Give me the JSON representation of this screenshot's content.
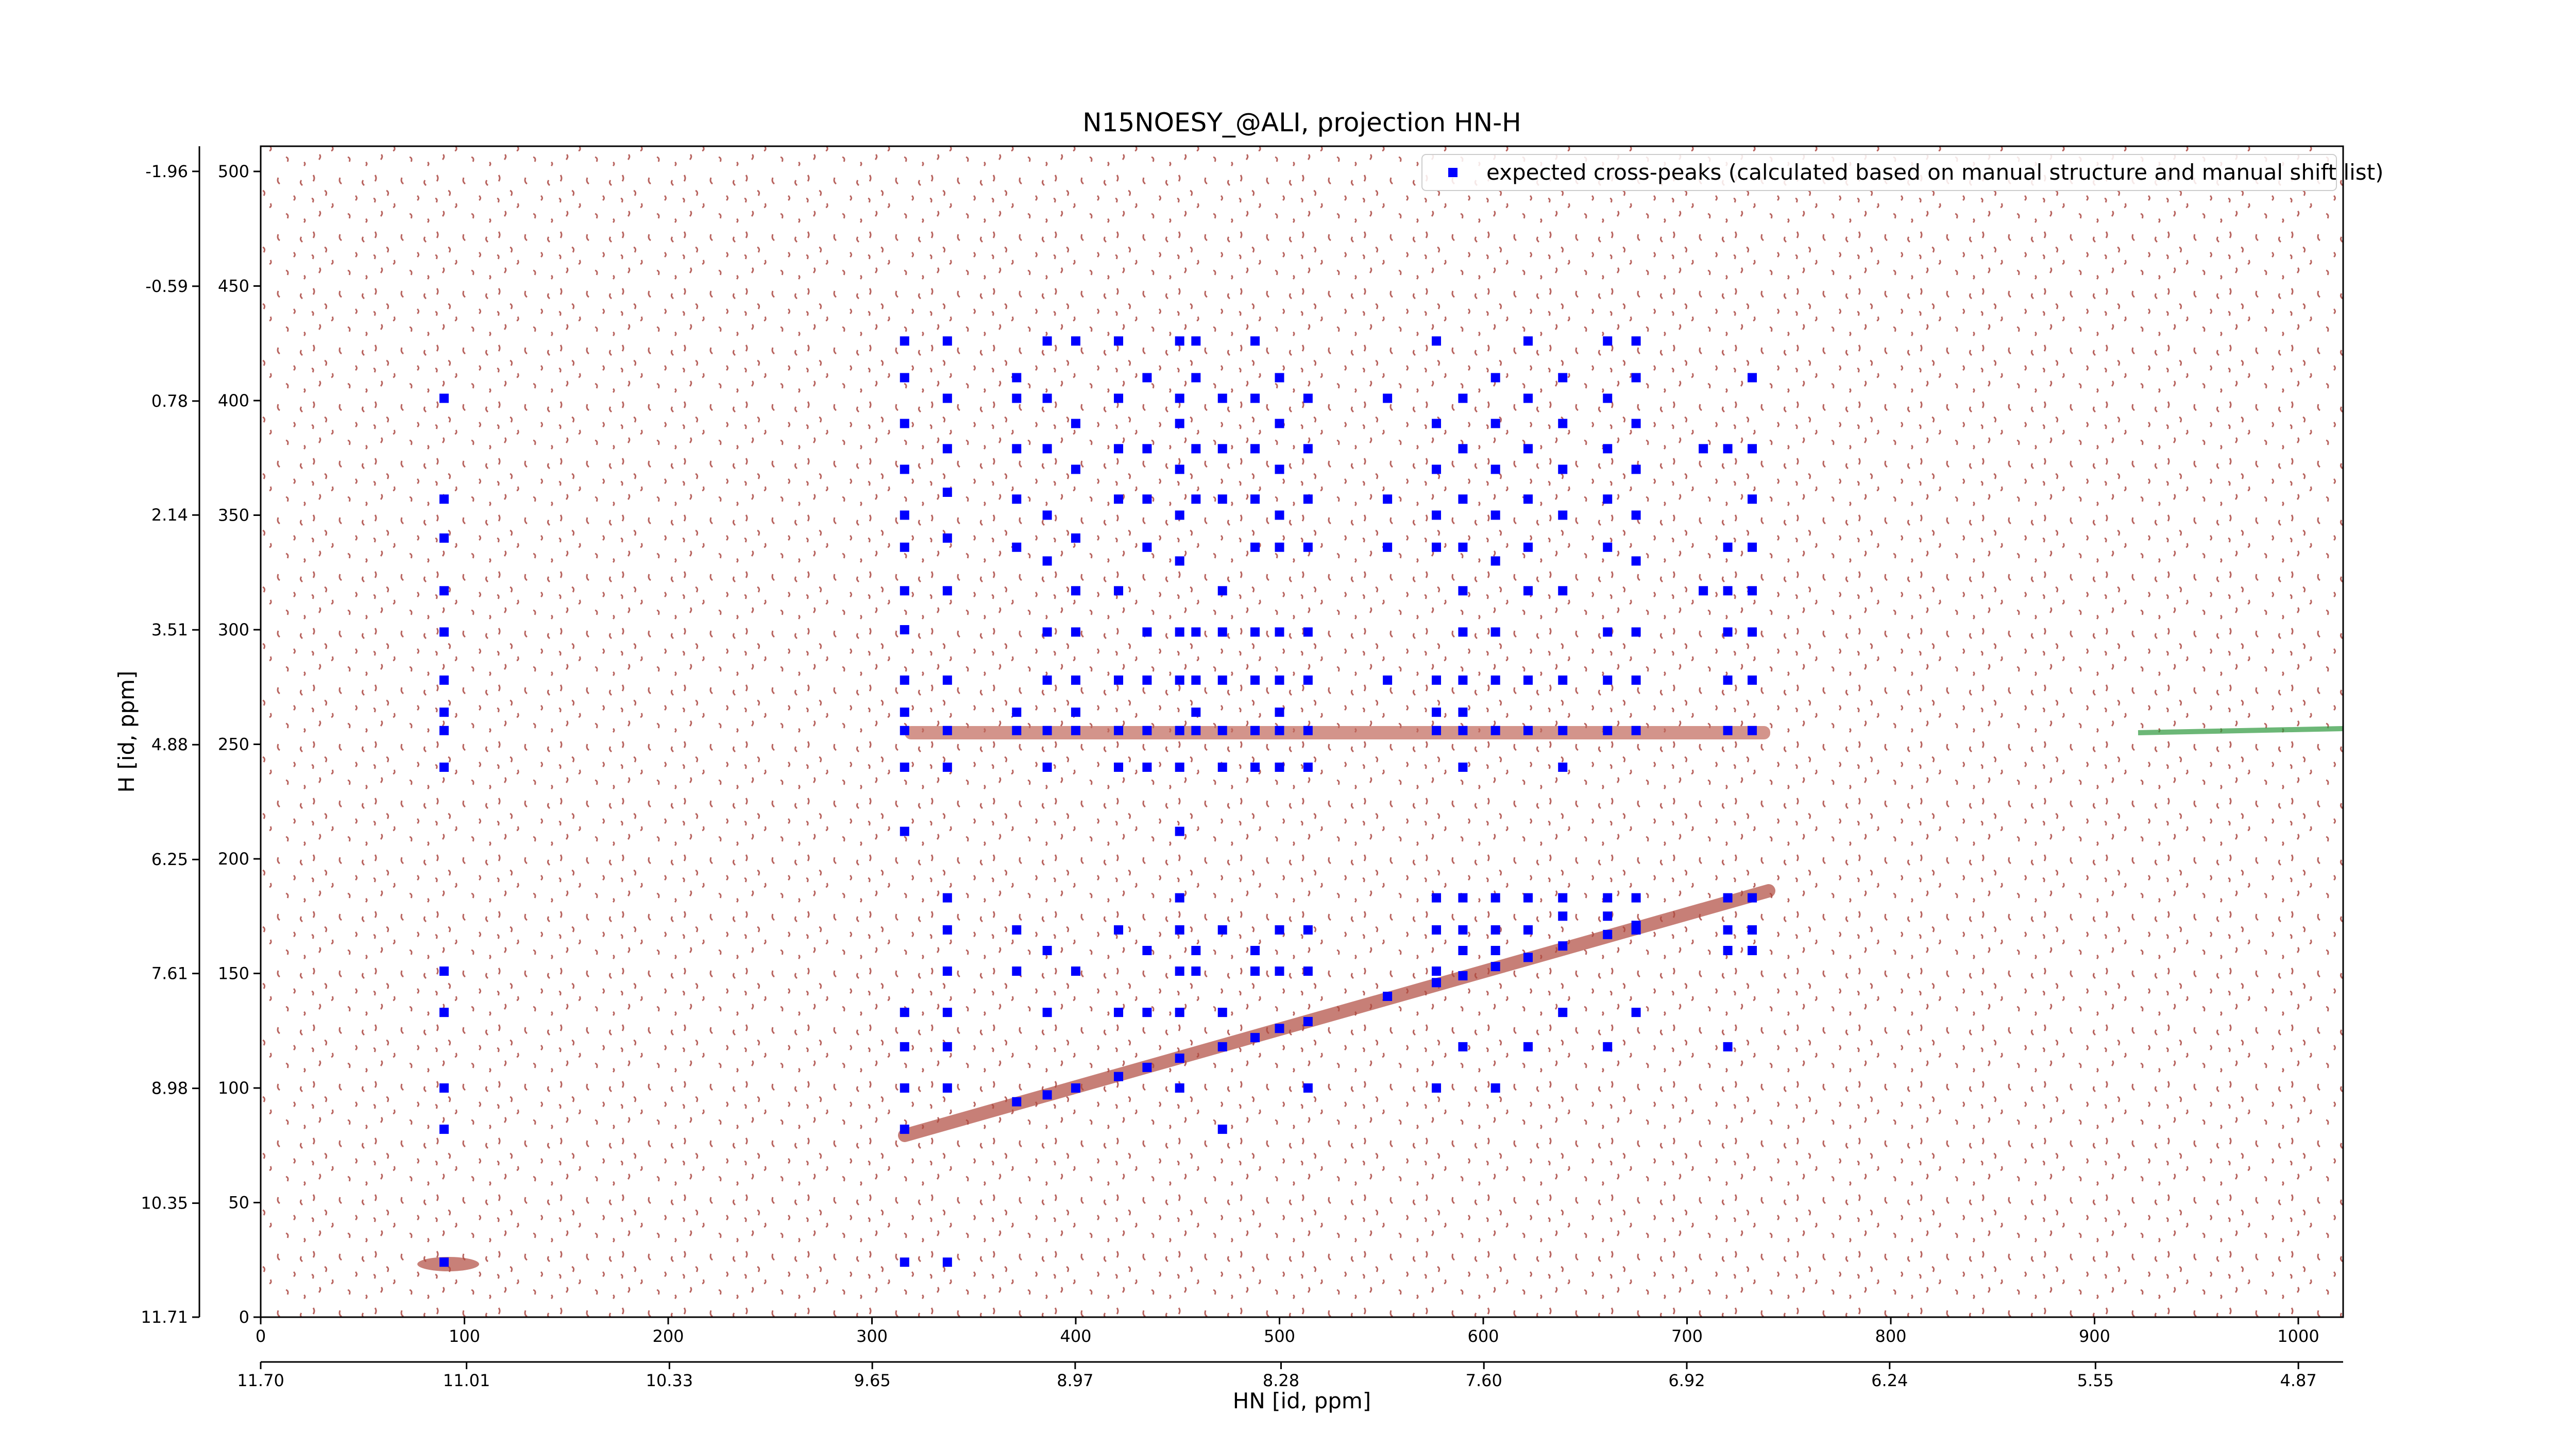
{
  "chart_data": {
    "type": "scatter",
    "title": "N15NOESY_@ALI, projection HN-H",
    "x_label": "HN [id, ppm]",
    "y_label": "H [id, ppm]",
    "xlim": [
      0,
      1022
    ],
    "ylim": [
      0,
      511
    ],
    "xticks": [
      0,
      100,
      200,
      300,
      400,
      500,
      600,
      700,
      800,
      900,
      1000
    ],
    "yticks": [
      0,
      50,
      100,
      150,
      200,
      250,
      300,
      350,
      400,
      450,
      500
    ],
    "x2lim": [
      11.7,
      4.72
    ],
    "x2ticks": [
      {
        "value": 11.7,
        "label": "11.70"
      },
      11.01,
      10.33,
      9.65,
      8.97,
      8.28,
      {
        "value": 7.6,
        "label": "7.60"
      },
      6.92,
      6.24,
      5.55,
      4.87
    ],
    "y2lim": [
      11.71,
      -2.26
    ],
    "y2ticks": [
      11.71,
      10.35,
      8.98,
      7.61,
      6.25,
      4.88,
      3.51,
      2.14,
      0.78,
      -0.59,
      -1.96
    ],
    "legend": "upper right",
    "series": [
      {
        "name": "expected cross-peaks (calculated based on manual structure and manual shift list)",
        "color": "#0000ff",
        "x": [
          90,
          90,
          90,
          90,
          90,
          90,
          90,
          90,
          90,
          90,
          90,
          90,
          90,
          90,
          316,
          316,
          316,
          316,
          316,
          316,
          316,
          316,
          316,
          316,
          316,
          316,
          316,
          316,
          316,
          316,
          316,
          316,
          337,
          337,
          337,
          337,
          337,
          337,
          337,
          337,
          337,
          337,
          337,
          337,
          337,
          337,
          337,
          337,
          371,
          371,
          371,
          371,
          371,
          371,
          371,
          371,
          371,
          386,
          386,
          386,
          386,
          386,
          386,
          386,
          386,
          386,
          386,
          386,
          400,
          400,
          400,
          400,
          400,
          400,
          400,
          400,
          400,
          400,
          421,
          421,
          421,
          421,
          421,
          421,
          421,
          421,
          421,
          421,
          435,
          435,
          435,
          435,
          435,
          435,
          435,
          435,
          435,
          435,
          451,
          451,
          451,
          451,
          451,
          451,
          451,
          451,
          451,
          451,
          451,
          451,
          451,
          451,
          451,
          451,
          459,
          459,
          459,
          459,
          459,
          459,
          459,
          459,
          459,
          459,
          472,
          472,
          472,
          472,
          472,
          472,
          472,
          472,
          472,
          472,
          472,
          488,
          488,
          488,
          488,
          488,
          488,
          488,
          488,
          488,
          488,
          488,
          500,
          500,
          500,
          500,
          500,
          500,
          500,
          500,
          500,
          500,
          500,
          500,
          514,
          514,
          514,
          514,
          514,
          514,
          514,
          514,
          514,
          514,
          514,
          553,
          553,
          553,
          553,
          577,
          577,
          577,
          577,
          577,
          577,
          577,
          577,
          577,
          577,
          577,
          577,
          590,
          590,
          590,
          590,
          590,
          590,
          590,
          590,
          590,
          590,
          590,
          590,
          590,
          590,
          606,
          606,
          606,
          606,
          606,
          606,
          606,
          606,
          606,
          606,
          606,
          606,
          622,
          622,
          622,
          622,
          622,
          622,
          622,
          622,
          622,
          622,
          622,
          639,
          639,
          639,
          639,
          639,
          639,
          639,
          639,
          639,
          639,
          639,
          661,
          661,
          661,
          661,
          661,
          661,
          661,
          661,
          661,
          661,
          661,
          675,
          675,
          675,
          675,
          675,
          675,
          675,
          675,
          675,
          675,
          675,
          675,
          708,
          708,
          720,
          720,
          720,
          720,
          720,
          720,
          720,
          720,
          720,
          720,
          732,
          732,
          732,
          732,
          732,
          732,
          732,
          732,
          732,
          732,
          732,
          371,
          386,
          400,
          421,
          435,
          451,
          472,
          488,
          500,
          514,
          553,
          577,
          590,
          606,
          622,
          639,
          661,
          675
        ],
        "y": [
          401,
          357,
          340,
          317,
          299,
          278,
          264,
          256,
          240,
          151,
          133,
          100,
          82,
          24,
          426,
          410,
          390,
          370,
          350,
          336,
          317,
          300,
          278,
          264,
          256,
          240,
          212,
          133,
          118,
          100,
          82,
          24,
          426,
          401,
          379,
          360,
          340,
          317,
          278,
          256,
          240,
          183,
          169,
          151,
          133,
          118,
          100,
          24,
          410,
          401,
          379,
          357,
          336,
          264,
          256,
          169,
          151,
          426,
          401,
          379,
          350,
          330,
          299,
          278,
          256,
          240,
          160,
          133,
          426,
          390,
          370,
          340,
          317,
          299,
          278,
          264,
          256,
          151,
          426,
          401,
          379,
          357,
          317,
          278,
          256,
          240,
          169,
          133,
          410,
          379,
          357,
          336,
          299,
          278,
          256,
          240,
          160,
          133,
          426,
          401,
          390,
          370,
          350,
          330,
          299,
          278,
          256,
          240,
          212,
          183,
          169,
          151,
          133,
          100,
          426,
          410,
          379,
          357,
          299,
          278,
          264,
          256,
          160,
          151,
          401,
          379,
          357,
          317,
          299,
          278,
          256,
          240,
          169,
          133,
          82,
          426,
          401,
          379,
          357,
          336,
          299,
          278,
          256,
          240,
          160,
          151,
          410,
          390,
          370,
          350,
          336,
          299,
          278,
          264,
          256,
          240,
          169,
          151,
          401,
          379,
          357,
          336,
          299,
          278,
          256,
          240,
          169,
          151,
          100,
          401,
          357,
          336,
          278,
          426,
          390,
          370,
          350,
          336,
          278,
          264,
          256,
          183,
          169,
          151,
          100,
          401,
          379,
          357,
          336,
          317,
          299,
          278,
          264,
          256,
          240,
          183,
          169,
          160,
          118,
          410,
          390,
          370,
          350,
          330,
          299,
          278,
          256,
          183,
          169,
          160,
          100,
          426,
          401,
          379,
          357,
          336,
          317,
          278,
          256,
          183,
          169,
          118,
          410,
          390,
          370,
          350,
          317,
          278,
          256,
          240,
          183,
          175,
          133,
          426,
          401,
          379,
          357,
          336,
          299,
          278,
          256,
          183,
          175,
          118,
          426,
          410,
          390,
          370,
          350,
          330,
          299,
          278,
          256,
          183,
          169,
          133,
          379,
          317,
          379,
          336,
          317,
          299,
          278,
          256,
          183,
          169,
          160,
          118,
          410,
          379,
          357,
          336,
          317,
          299,
          278,
          256,
          183,
          169,
          160,
          94,
          97,
          100,
          105,
          109,
          113,
          118,
          122,
          126,
          129,
          140,
          146,
          149,
          153,
          157,
          162,
          167,
          171
        ]
      }
    ]
  }
}
